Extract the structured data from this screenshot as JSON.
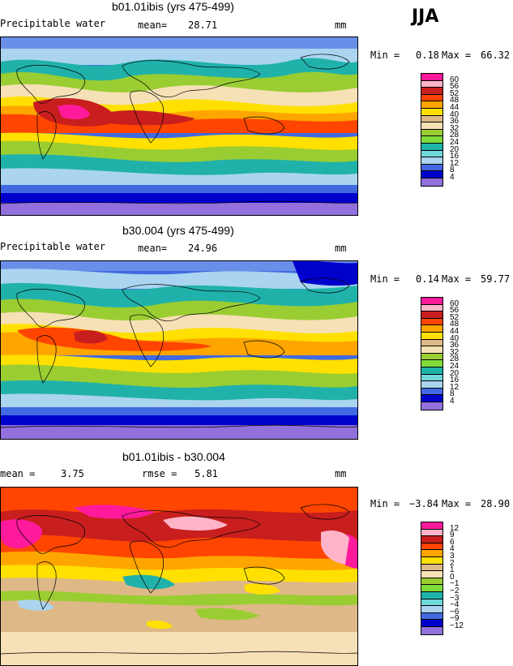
{
  "season": "JJA",
  "unit": "mm",
  "panels": [
    {
      "title": "b01.01ibis (yrs 475-499)",
      "left_label": "Precipitable water",
      "stat_label": "mean=",
      "stat_value": "28.71",
      "min_label": "Min =",
      "min_value": "0.18",
      "max_label": "Max =",
      "max_value": "66.32",
      "levels": [
        "60",
        "56",
        "52",
        "48",
        "44",
        "40",
        "36",
        "32",
        "28",
        "24",
        "20",
        "16",
        "12",
        "8",
        "4"
      ],
      "colors": [
        "#ff1a9c",
        "#ffb3c8",
        "#c81e1e",
        "#ff4500",
        "#ffa500",
        "#ffe000",
        "#deb887",
        "#f5e1b5",
        "#9acd32",
        "#7fdc3c",
        "#20b2aa",
        "#70d8d8",
        "#aad4f0",
        "#4169e1",
        "#0000cd",
        "#9370db"
      ]
    },
    {
      "title": "b30.004 (yrs 475-499)",
      "left_label": "Precipitable water",
      "stat_label": "mean=",
      "stat_value": "24.96",
      "min_label": "Min =",
      "min_value": "0.14",
      "max_label": "Max =",
      "max_value": "59.77",
      "levels": [
        "60",
        "56",
        "52",
        "48",
        "44",
        "40",
        "36",
        "32",
        "28",
        "24",
        "20",
        "16",
        "12",
        "8",
        "4"
      ],
      "colors": [
        "#ff1a9c",
        "#ffb3c8",
        "#c81e1e",
        "#ff4500",
        "#ffa500",
        "#ffe000",
        "#deb887",
        "#f5e1b5",
        "#9acd32",
        "#7fdc3c",
        "#20b2aa",
        "#70d8d8",
        "#aad4f0",
        "#4169e1",
        "#0000cd",
        "#9370db"
      ]
    },
    {
      "title": "b01.01ibis - b30.004",
      "left_label": "mean =",
      "left_value": "3.75",
      "stat_label": "rmse =",
      "stat_value": "5.81",
      "min_label": "Min =",
      "min_value": "−3.84",
      "max_label": "Max =",
      "max_value": "28.90",
      "levels": [
        "12",
        "9",
        "6",
        "4",
        "3",
        "2",
        "1",
        "0",
        "−1",
        "−2",
        "−3",
        "−4",
        "−6",
        "−9",
        "−12"
      ],
      "colors": [
        "#ff1a9c",
        "#ffb3c8",
        "#c81e1e",
        "#ff4500",
        "#ffa500",
        "#ffe000",
        "#deb887",
        "#f5e1b5",
        "#9acd32",
        "#7fdc3c",
        "#20b2aa",
        "#70d8d8",
        "#aad4f0",
        "#4169e1",
        "#0000cd",
        "#9370db"
      ]
    }
  ]
}
